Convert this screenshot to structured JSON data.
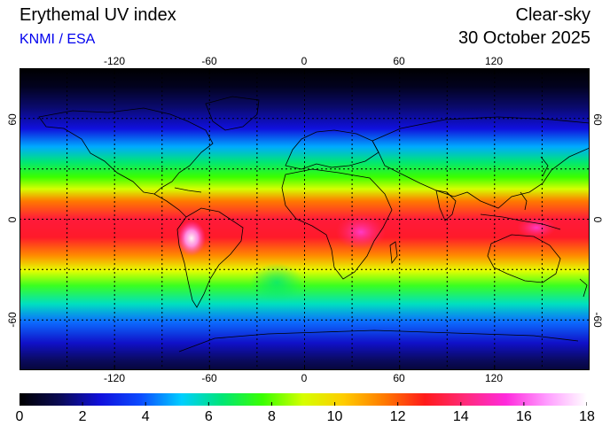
{
  "header": {
    "title": "Erythemal UV index",
    "source": "KNMI / ESA",
    "mode": "Clear-sky",
    "date": "30 October 2025"
  },
  "map": {
    "projection": "equirectangular",
    "lon_range": [
      -180,
      180
    ],
    "lat_range": [
      -90,
      90
    ],
    "lon_ticks": [
      "-120",
      "-60",
      "0",
      "60",
      "120"
    ],
    "lat_ticks": [
      "60",
      "0",
      "-60"
    ],
    "gridlines": "dotted, every 30 degrees",
    "coastlines": true
  },
  "colorbar": {
    "range": [
      0,
      18
    ],
    "tick_labels": [
      "0",
      "2",
      "4",
      "6",
      "8",
      "10",
      "12",
      "14",
      "16",
      "18"
    ],
    "colors": [
      "#000000",
      "#0a0a55",
      "#1010dd",
      "#0c4cff",
      "#00cfff",
      "#00e676",
      "#3aff00",
      "#d6ff00",
      "#ffcc00",
      "#ff7a00",
      "#ff1a1a",
      "#ff2a7a",
      "#ff2adc",
      "#ff9cff",
      "#ffffff"
    ]
  }
}
